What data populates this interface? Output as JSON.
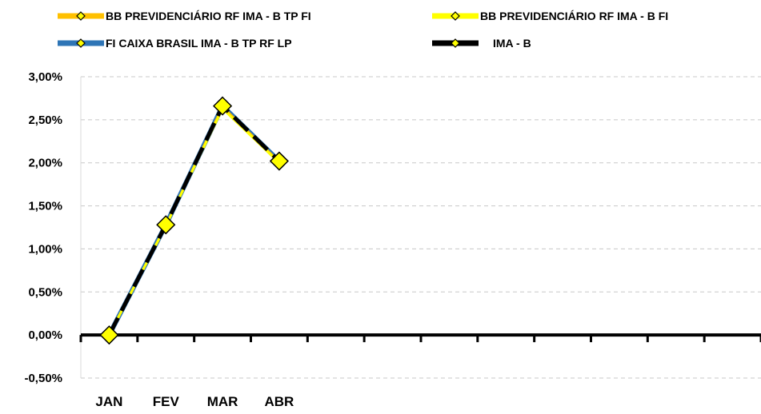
{
  "chart_data": {
    "type": "line",
    "categories": [
      "JAN",
      "FEV",
      "MAR",
      "ABR"
    ],
    "axis_slots": 12,
    "ylim": [
      -0.5,
      3.0
    ],
    "y_ticks": [
      -0.5,
      0,
      0.5,
      1.0,
      1.5,
      2.0,
      2.5,
      3.0
    ],
    "y_tick_labels": [
      "-0,50%",
      "0,00%",
      "0,50%",
      "1,00%",
      "1,50%",
      "2,00%",
      "2,50%",
      "3,00%"
    ],
    "grid": true,
    "legend_position": "top",
    "series": [
      {
        "name": "BB PREVIDENCIÁRIO RF IMA - B TP FI",
        "color": "#FFC000",
        "values": [
          0,
          1.27,
          2.65,
          2.01
        ]
      },
      {
        "name": "BB PREVIDENCIÁRIO RF IMA - B FI",
        "color": "#FFFF00",
        "values": [
          0,
          1.27,
          2.63,
          2.0
        ]
      },
      {
        "name": "FI CAIXA BRASIL IMA - B TP RF LP",
        "color": "#2E75B6",
        "values": [
          0,
          1.28,
          2.66,
          2.02
        ]
      },
      {
        "name": "IMA - B",
        "color": "#000000",
        "dashed": true,
        "values": [
          0,
          1.28,
          2.66,
          2.02
        ]
      }
    ],
    "marker_color": "#FFFF00"
  }
}
